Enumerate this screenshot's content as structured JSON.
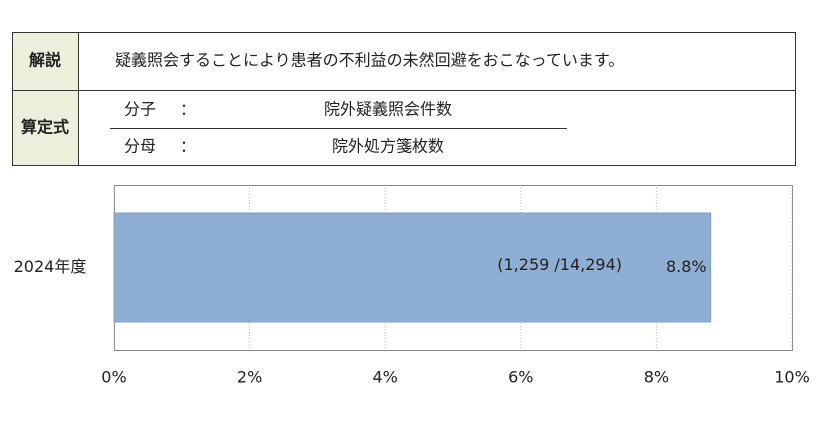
{
  "definition": {
    "explanation_label": "解説",
    "explanation": "疑義照会することにより患者の不利益の未然回避をおこなっています。",
    "formula_label": "算定式",
    "numerator_label": "分子",
    "numerator_colon": "：",
    "numerator": "院外疑義照会件数",
    "denominator_label": "分母",
    "denominator_colon": "：",
    "denominator": "院外処方箋枚数"
  },
  "chart_data": {
    "type": "hbar",
    "categories": [
      "2024年度"
    ],
    "values": [
      8.8
    ],
    "value_labels": [
      "8.8%"
    ],
    "annotation": "(1,259 /14,294)",
    "color": "#8faed3",
    "xlim": [
      0,
      10
    ],
    "xticks": [
      {
        "value": 0,
        "label": "0%"
      },
      {
        "value": 2,
        "label": "2%"
      },
      {
        "value": 4,
        "label": "4%"
      },
      {
        "value": 6,
        "label": "6%"
      },
      {
        "value": 8,
        "label": "8%"
      },
      {
        "value": 10,
        "label": "10%"
      }
    ],
    "grid": true
  }
}
